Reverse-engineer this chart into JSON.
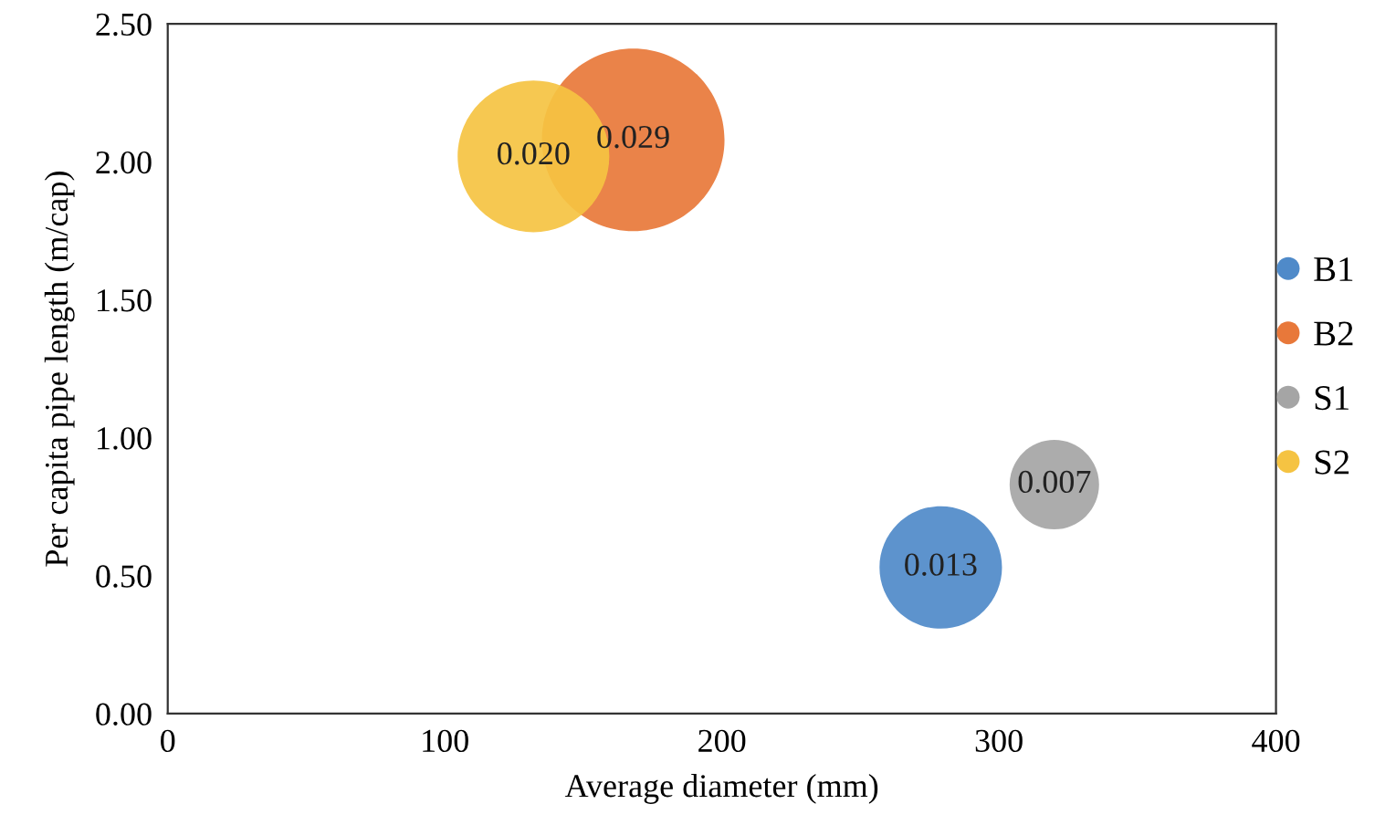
{
  "chart_data": {
    "type": "bubble",
    "xlabel": "Average diameter (mm)",
    "ylabel": "Per capita pipe length (m/cap)",
    "series": [
      {
        "name": "B1",
        "color": "#4f8ac9",
        "x": [
          279
        ],
        "values": [
          0.53
        ],
        "sizes": [
          0.45
        ]
      },
      {
        "name": "B2",
        "color": "#e8783a",
        "x": [
          168
        ],
        "values": [
          2.08
        ],
        "sizes": [
          1
        ]
      },
      {
        "name": "S1",
        "color": "#a5a5a5",
        "x": [
          320
        ],
        "values": [
          0.83
        ],
        "sizes": [
          0.24
        ]
      },
      {
        "name": "S2",
        "color": "#f5c342",
        "x": [
          132
        ],
        "values": [
          2.02
        ],
        "sizes": [
          0.69
        ]
      }
    ],
    "annotations": [
      {
        "text": "0.013",
        "x": 279,
        "y": 0.53
      },
      {
        "text": "0.029",
        "x": 168,
        "y": 2.08
      },
      {
        "text": "0.007",
        "x": 320,
        "y": 0.83
      },
      {
        "text": "0.020",
        "x": 132,
        "y": 2.02
      }
    ],
    "xlim": [
      0,
      400
    ],
    "xticks": [
      0,
      100,
      200,
      300,
      400
    ],
    "ylim": [
      0,
      2.5
    ],
    "yticks": [
      {
        "value": 0,
        "label": "0.00"
      },
      {
        "value": 0.5,
        "label": "0.50"
      },
      {
        "value": 1,
        "label": "1.00"
      },
      {
        "value": 1.5,
        "label": "1.50"
      },
      {
        "value": 2,
        "label": "2.00"
      },
      {
        "value": 2.5,
        "label": "2.50"
      }
    ],
    "grid": false,
    "legend": "right",
    "marker": "circle"
  }
}
